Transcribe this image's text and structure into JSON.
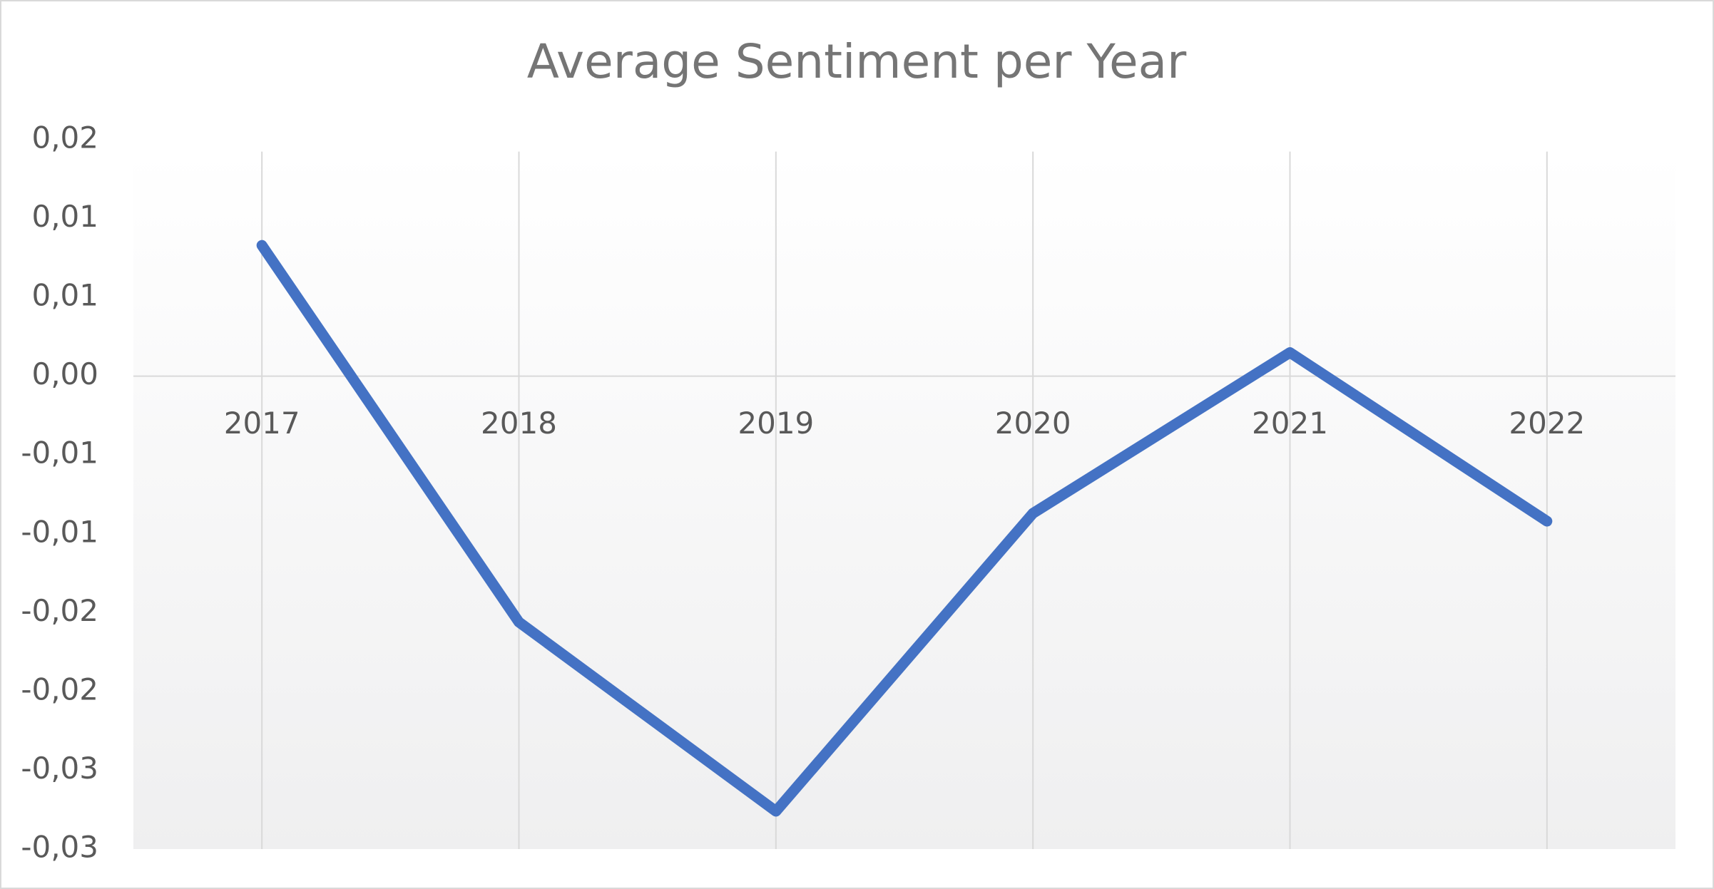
{
  "chart_data": {
    "type": "line",
    "title": "Average Sentiment per Year",
    "categories": [
      "2017",
      "2018",
      "2019",
      "2020",
      "2021",
      "2022"
    ],
    "series": [
      {
        "name": "Average Sentiment",
        "color": "#4472c4",
        "values": [
          0.0083,
          -0.0156,
          -0.0276,
          -0.0087,
          0.0015,
          -0.0092
        ]
      }
    ],
    "ylim": [
      -0.03,
      0.015
    ],
    "yticks": [
      {
        "value": -0.03,
        "label": "-0,03"
      },
      {
        "value": -0.025,
        "label": "-0,03"
      },
      {
        "value": -0.02,
        "label": "-0,02"
      },
      {
        "value": -0.015,
        "label": "-0,02"
      },
      {
        "value": -0.01,
        "label": "-0,01"
      },
      {
        "value": -0.005,
        "label": "-0,01"
      },
      {
        "value": 0,
        "label": "0,00"
      },
      {
        "value": 0.005,
        "label": "0,01"
      },
      {
        "value": 0.01,
        "label": "0,01"
      },
      {
        "value": 0.015,
        "label": "0,02"
      }
    ],
    "grid": "x"
  }
}
